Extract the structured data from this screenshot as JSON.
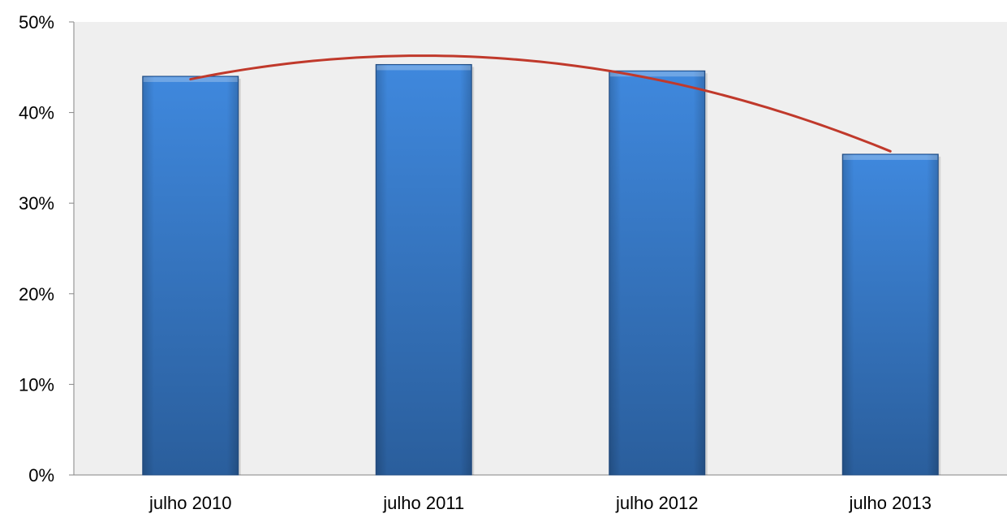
{
  "chart_data": {
    "type": "bar",
    "categories": [
      "julho 2010",
      "julho 2011",
      "julho 2012",
      "julho 2013"
    ],
    "series": [
      {
        "values": [
          44,
          45.3,
          44.6,
          35.4
        ]
      }
    ],
    "trendline": {
      "type": "polynomial",
      "values": [
        44,
        45.3,
        44.6,
        35.4
      ]
    },
    "ylim": [
      0,
      50
    ],
    "yticks": [
      0,
      10,
      20,
      30,
      40,
      50
    ],
    "yticks_labels": [
      "0%",
      "10%",
      "20%",
      "30%",
      "40%",
      "50%"
    ],
    "title": "",
    "xlabel": "",
    "ylabel": "",
    "grid": false,
    "legend": "none",
    "colors": {
      "plot_background": "#efefef",
      "bar_top": "#3f88dd",
      "bar_bottom": "#2a5e9c",
      "bar_edge": "#244f86",
      "trendline": "#c0392b",
      "axis": "#868686"
    }
  }
}
